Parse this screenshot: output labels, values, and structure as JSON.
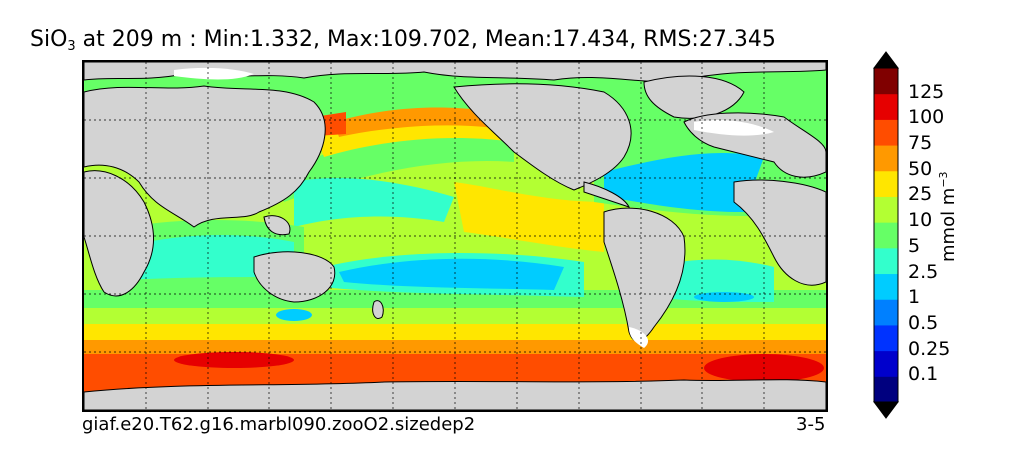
{
  "title": {
    "variable": "SiO",
    "subscript": "3",
    "text": " at 209 m : Min:1.332, Max:109.702, Mean:17.434, RMS:27.345"
  },
  "footer": {
    "case_name": "giaf.e20.T62.g16.marbl090.zooO2.sizedep2",
    "period": "3-5"
  },
  "colorbar": {
    "units_base": "mmol m",
    "units_exponent": "−3",
    "levels": [
      {
        "label": "",
        "color": "#00007f"
      },
      {
        "label": "0.1",
        "color": "#0000cc"
      },
      {
        "label": "0.25",
        "color": "#0033ff"
      },
      {
        "label": "0.5",
        "color": "#0080ff"
      },
      {
        "label": "1",
        "color": "#00ccff"
      },
      {
        "label": "2.5",
        "color": "#33ffcc"
      },
      {
        "label": "5",
        "color": "#66ff66"
      },
      {
        "label": "10",
        "color": "#b3ff33"
      },
      {
        "label": "25",
        "color": "#ffe600"
      },
      {
        "label": "50",
        "color": "#ff9900"
      },
      {
        "label": "75",
        "color": "#ff4d00"
      },
      {
        "label": "100",
        "color": "#e60000"
      },
      {
        "label": "125",
        "color": "#800000"
      }
    ],
    "under_color": "#000000",
    "over_color": "#000000"
  },
  "map": {
    "land_color": "#d3d3d3",
    "ice_color": "#ffffff",
    "grid": true
  }
}
